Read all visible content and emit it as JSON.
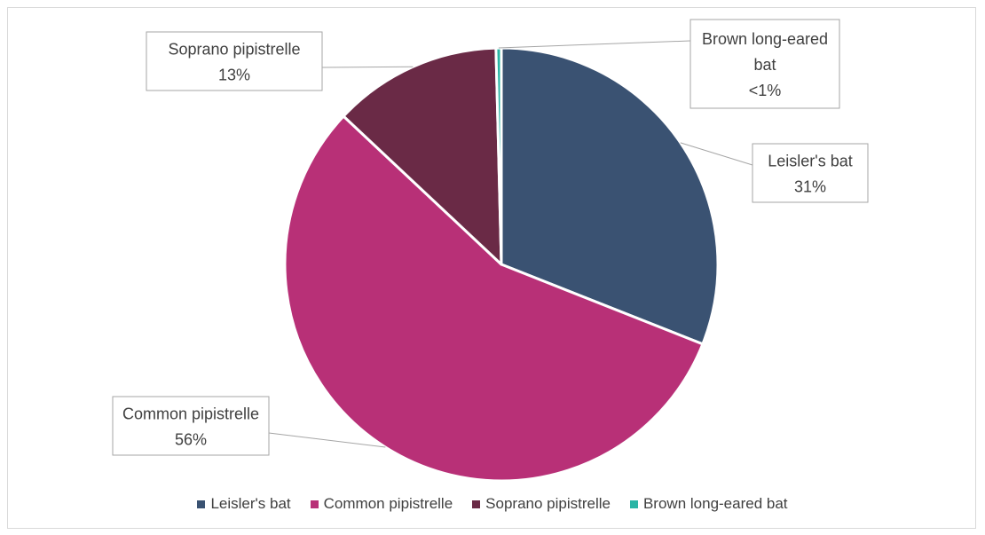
{
  "chart_data": {
    "type": "pie",
    "slices": [
      {
        "label": "Leisler's bat",
        "value": 31,
        "value_label": "31%",
        "color": "#3a5272"
      },
      {
        "label": "Common pipistrelle",
        "value": 56,
        "value_label": "56%",
        "color": "#b83077"
      },
      {
        "label": "Soprano pipistrelle",
        "value": 12.6,
        "value_label": "13%",
        "color": "#6a2a46"
      },
      {
        "label": "Brown long-eared bat",
        "value": 0.4,
        "value_label": "<1%",
        "color": "#2ab5a5"
      }
    ],
    "legend_position": "bottom"
  }
}
